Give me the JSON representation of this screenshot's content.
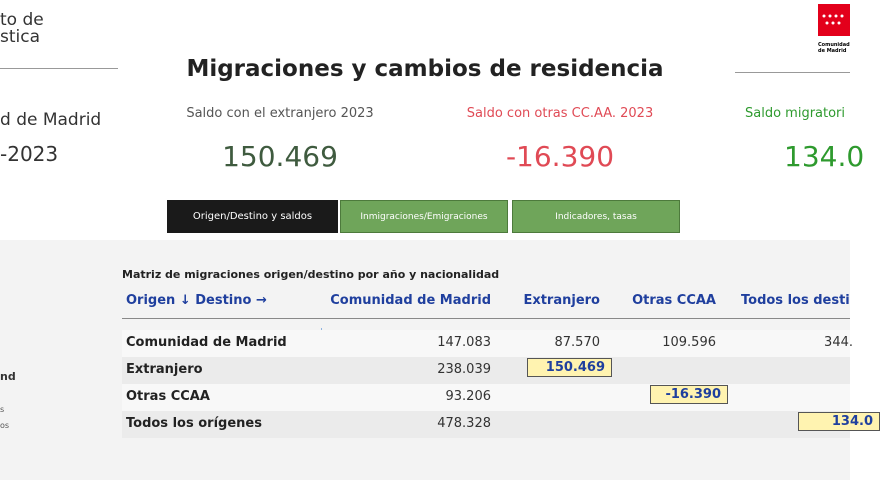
{
  "header": {
    "logo_left": [
      "to de",
      "stica"
    ],
    "title": "Migraciones y cambios de residencia",
    "logo_right": "Comunidad de Madrid"
  },
  "left_panel": {
    "region": "d de Madrid",
    "period": "-2023",
    "labels": [
      "nd",
      "s",
      "os"
    ]
  },
  "kpis": [
    {
      "label": "Saldo con el extranjero 2023",
      "value": "150.469"
    },
    {
      "label": "Saldo con otras CC.AA. 2023",
      "value": "-16.390"
    },
    {
      "label": "Saldo migratori",
      "value": "134.0"
    }
  ],
  "tabs": [
    "Origen/Destino y saldos",
    "Inmigraciones/Emigraciones",
    "Indicadores, tasas"
  ],
  "table": {
    "title": "Matriz de migraciones origen/destino por año y nacionalidad",
    "columns": [
      "Origen ↓ Destino →",
      "Comunidad de Madrid",
      "Extranjero",
      "Otras CCAA",
      "Todos los desti"
    ],
    "rows": [
      [
        "Comunidad de Madrid",
        "147.083",
        "87.570",
        "109.596",
        "344."
      ],
      [
        "Extranjero",
        "238.039",
        "150.469",
        null,
        null
      ],
      [
        "Otras CCAA",
        "93.206",
        null,
        "-16.390",
        null
      ],
      [
        "Todos los orígenes",
        "478.328",
        null,
        null,
        "134.0"
      ]
    ]
  }
}
